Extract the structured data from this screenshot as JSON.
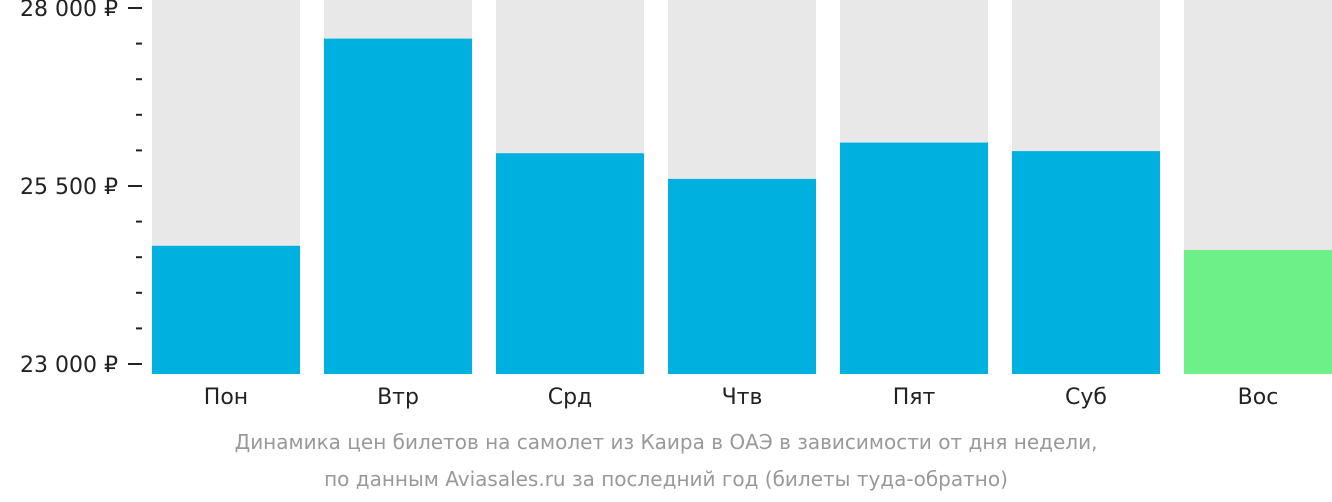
{
  "chart_data": {
    "type": "bar",
    "categories": [
      "Пон",
      "Втр",
      "Срд",
      "Чтв",
      "Пят",
      "Суб",
      "Вос"
    ],
    "values": [
      24660,
      27570,
      25960,
      25600,
      26110,
      25990,
      24600
    ],
    "ylim": [
      23000,
      28000
    ],
    "yticks": [
      {
        "value": 28000,
        "label": "28 000 ₽"
      },
      {
        "value": 25500,
        "label": "25 500 ₽"
      },
      {
        "value": 23000,
        "label": "23 000 ₽"
      }
    ],
    "minor_tick_step": 500,
    "highlight_index": 6,
    "colors": {
      "bar": "#00b0de",
      "highlight": "#6cf087",
      "background": "#e8e8e8",
      "text": "#222222"
    }
  },
  "caption": {
    "line1": "Динамика цен билетов на самолет из Каира в ОАЭ в зависимости от дня недели,",
    "line2": "по данным Aviasales.ru за последний год (билеты туда-обратно)"
  }
}
